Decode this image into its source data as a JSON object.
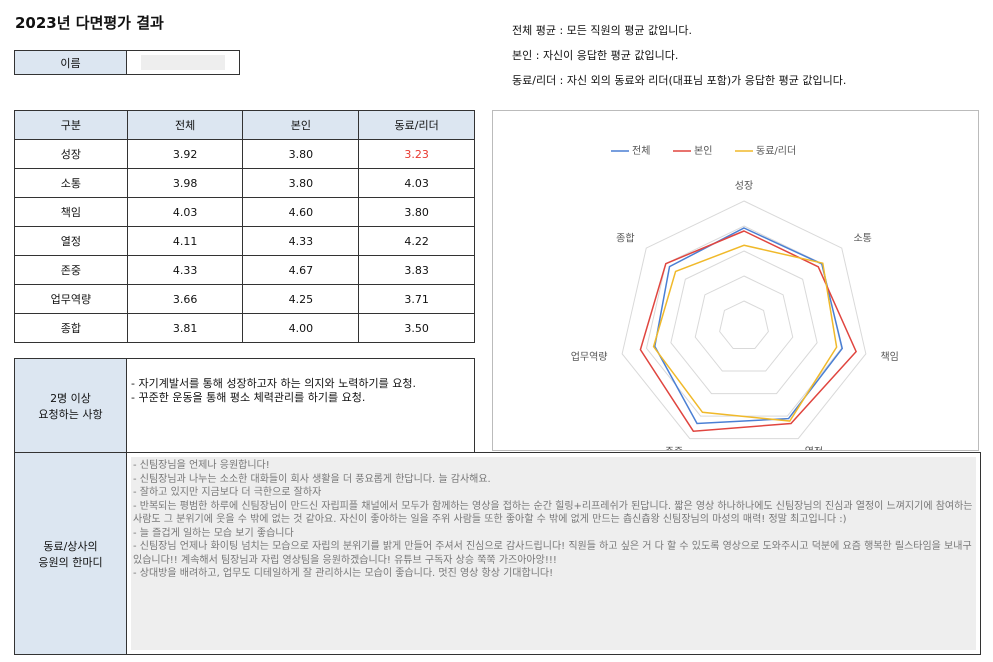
{
  "header": {
    "title": "2023년 다면평가 결과",
    "name_label": "이름"
  },
  "notes": [
    "전체 평균 : 모든 직원의 평균 값입니다.",
    "본인 : 자신이 응답한 평균 값입니다.",
    "동료/리더 : 자신 외의 동료와 리더(대표님 포함)가 응답한 평균 값입니다."
  ],
  "table": {
    "header": [
      "구분",
      "전체",
      "본인",
      "동료/리더"
    ],
    "rows": [
      [
        "성장",
        {
          "value": 3.92,
          "label": "3.92"
        },
        {
          "value": 3.8,
          "label": "3.80"
        },
        {
          "value": 3.23,
          "label": "3.23",
          "color": "#e8382f"
        }
      ],
      [
        "소통",
        {
          "value": 3.98,
          "label": "3.98"
        },
        {
          "value": 3.8,
          "label": "3.80"
        },
        {
          "value": 4.03,
          "label": "4.03"
        }
      ],
      [
        "책임",
        {
          "value": 4.03,
          "label": "4.03"
        },
        {
          "value": 4.6,
          "label": "4.60"
        },
        {
          "value": 3.8,
          "label": "3.80"
        }
      ],
      [
        "열정",
        {
          "value": 4.11,
          "label": "4.11"
        },
        {
          "value": 4.33,
          "label": "4.33"
        },
        {
          "value": 4.22,
          "label": "4.22"
        }
      ],
      [
        "존중",
        {
          "value": 4.33,
          "label": "4.33"
        },
        {
          "value": 4.67,
          "label": "4.67"
        },
        {
          "value": 3.83,
          "label": "3.83"
        }
      ],
      [
        "업무역량",
        {
          "value": 3.66,
          "label": "3.66"
        },
        {
          "value": 4.25,
          "label": "4.25"
        },
        {
          "value": 3.71,
          "label": "3.71"
        }
      ],
      [
        "종합",
        {
          "value": 3.81,
          "label": "3.81"
        },
        {
          "value": 4.0,
          "label": "4.00"
        },
        {
          "value": 3.5,
          "label": "3.50"
        }
      ]
    ]
  },
  "radar": {
    "colors": [
      "#4a7fd4",
      "#e0453f",
      "#f0b92a"
    ],
    "rlim": [
      0,
      5
    ],
    "rticks": [
      1,
      2,
      3,
      4,
      5
    ]
  },
  "requests": {
    "label": [
      "2명 이상",
      "요청하는 사항"
    ],
    "items": [
      "- 자기계발서를 통해 성장하고자 하는 의지와 노력하기를 요청.",
      "- 꾸준한 운동을 통해 평소 체력관리를 하기를 요청."
    ]
  },
  "messages": {
    "label": [
      "동료/상사의",
      "응원의 한마디"
    ],
    "items": [
      "- 신팀장님을 언제나 응원합니다!",
      "- 신팀장님과 나누는 소소한 대화들이 회사 생활을 더 풍요롭게 한답니다. 늘 감사해요.",
      "- 잘하고 있지만 지금보다 더 극한으로 잘하자",
      "- 반복되는 평범한 하루에 신팀장님이 만드신 자립피플 채널에서 모두가 함께하는 영상을 접하는 순간 힐링+리프레쉬가 된답니다. 짧은 영상 하나하나에도 신팀장님의 진심과 열정이 느껴지기에 참여하는 사람도 그 분위기에 웃을 수 밖에 없는 것 같아요. 자신이 좋아하는 일을 주위 사람들 또한 좋아할 수 밖에 없게 만드는 츕신츕왕 신팀장님의 마성의 매력! 정말 최고입니다 :)",
      "- 늘 즐겁게 일하는 모습 보기 좋습니다",
      "- 신팀장님 언제나 화이팅 넘치는 모습으로 자립의 분위기를 밝게 만들어 주셔서 진심으로 감사드립니다! 직원들 하고 싶은 거 다 할 수 있도록 영상으로 도와주시고 덕분에 요즘 행복한 릴스타임을 보내구 있습니다!! 계속해서 팀장님과 자립 영상팀을 응원하겠습니다! 유튜브 구독자 상승 쭉쭉 가즈아아앙!!!",
      "- 상대방을 배려하고, 업무도 디테일하게 잘 관리하시는 모습이 좋습니다. 멋진 영상 항상 기대합니다!"
    ]
  }
}
